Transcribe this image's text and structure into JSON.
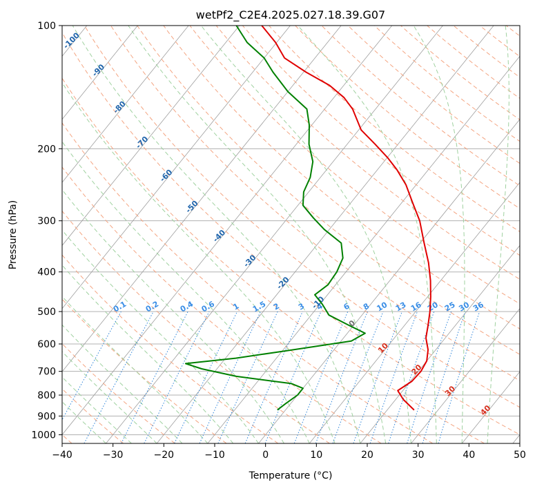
{
  "chart_data": {
    "type": "line",
    "diagram": "skew-T log-P",
    "title": "wetPf2_C2E4.2025.027.18.39.G07",
    "xlabel": "Temperature (°C)",
    "ylabel": "Pressure (hPa)",
    "xlim": [
      -40,
      50
    ],
    "ylim": [
      1050,
      100
    ],
    "yscale": "log",
    "x_ticks": [
      -40,
      -30,
      -20,
      -10,
      0,
      10,
      20,
      30,
      40,
      50
    ],
    "y_ticks": [
      100,
      200,
      300,
      400,
      500,
      600,
      700,
      800,
      900,
      1000
    ],
    "grid": true,
    "series": [
      {
        "role": "temperature",
        "color": "#e00000",
        "points": [
          {
            "p": 870,
            "t": 25.3
          },
          {
            "p": 820,
            "t": 21.5
          },
          {
            "p": 780,
            "t": 19.0
          },
          {
            "p": 740,
            "t": 20.3
          },
          {
            "p": 700,
            "t": 20.5
          },
          {
            "p": 660,
            "t": 20.0
          },
          {
            "p": 620,
            "t": 18.5
          },
          {
            "p": 580,
            "t": 16.2
          },
          {
            "p": 540,
            "t": 14.6
          },
          {
            "p": 500,
            "t": 12.8
          },
          {
            "p": 460,
            "t": 10.6
          },
          {
            "p": 420,
            "t": 8.0
          },
          {
            "p": 380,
            "t": 4.8
          },
          {
            "p": 340,
            "t": 0.8
          },
          {
            "p": 300,
            "t": -3.6
          },
          {
            "p": 270,
            "t": -8.0
          },
          {
            "p": 245,
            "t": -12.0
          },
          {
            "p": 225,
            "t": -16.2
          },
          {
            "p": 210,
            "t": -20.0
          },
          {
            "p": 195,
            "t": -24.5
          },
          {
            "p": 180,
            "t": -29.5
          },
          {
            "p": 160,
            "t": -34.5
          },
          {
            "p": 150,
            "t": -38.0
          },
          {
            "p": 140,
            "t": -42.8
          },
          {
            "p": 130,
            "t": -49.5
          },
          {
            "p": 120,
            "t": -56.0
          },
          {
            "p": 110,
            "t": -60.2
          },
          {
            "p": 100,
            "t": -65.6
          }
        ]
      },
      {
        "role": "dewpoint",
        "color": "#008000",
        "points": [
          {
            "p": 870,
            "t": -1.6
          },
          {
            "p": 840,
            "t": -1.0
          },
          {
            "p": 800,
            "t": 0.0
          },
          {
            "p": 770,
            "t": 0.0
          },
          {
            "p": 750,
            "t": -3.0
          },
          {
            "p": 720,
            "t": -15.0
          },
          {
            "p": 690,
            "t": -23.0
          },
          {
            "p": 670,
            "t": -27.0
          },
          {
            "p": 650,
            "t": -18.0
          },
          {
            "p": 620,
            "t": -8.0
          },
          {
            "p": 590,
            "t": 2.0
          },
          {
            "p": 565,
            "t": 3.5
          },
          {
            "p": 540,
            "t": -1.0
          },
          {
            "p": 510,
            "t": -6.5
          },
          {
            "p": 480,
            "t": -9.5
          },
          {
            "p": 455,
            "t": -12.5
          },
          {
            "p": 430,
            "t": -11.5
          },
          {
            "p": 400,
            "t": -11.8
          },
          {
            "p": 370,
            "t": -12.8
          },
          {
            "p": 340,
            "t": -15.5
          },
          {
            "p": 315,
            "t": -21.0
          },
          {
            "p": 295,
            "t": -25.0
          },
          {
            "p": 275,
            "t": -29.0
          },
          {
            "p": 255,
            "t": -31.0
          },
          {
            "p": 235,
            "t": -32.0
          },
          {
            "p": 215,
            "t": -34.0
          },
          {
            "p": 195,
            "t": -37.5
          },
          {
            "p": 175,
            "t": -40.5
          },
          {
            "p": 160,
            "t": -43.5
          },
          {
            "p": 145,
            "t": -50.0
          },
          {
            "p": 130,
            "t": -56.0
          },
          {
            "p": 120,
            "t": -60.0
          },
          {
            "p": 110,
            "t": -65.8
          },
          {
            "p": 100,
            "t": -70.6
          }
        ]
      }
    ],
    "dry_adiabat_labels": [
      {
        "text": "-100",
        "t": -100,
        "p": 110
      },
      {
        "text": "-90",
        "t": -90,
        "p": 130
      },
      {
        "text": "-80",
        "t": -80,
        "p": 160
      },
      {
        "text": "-70",
        "t": -70,
        "p": 195
      },
      {
        "text": "-60",
        "t": -60,
        "p": 235
      },
      {
        "text": "-50",
        "t": -50,
        "p": 280
      },
      {
        "text": "-40",
        "t": -40,
        "p": 330
      },
      {
        "text": "-30",
        "t": -30,
        "p": 380
      },
      {
        "text": "-20",
        "t": -20,
        "p": 430
      },
      {
        "text": "-10",
        "t": -10,
        "p": 480
      }
    ],
    "moist_adiabat_labels": [
      {
        "text": "0",
        "t": 0,
        "p": 540
      },
      {
        "text": "10",
        "t": 10,
        "p": 620
      },
      {
        "text": "20",
        "t": 20,
        "p": 700
      },
      {
        "text": "30",
        "t": 30,
        "p": 790
      },
      {
        "text": "40",
        "t": 40,
        "p": 880
      }
    ],
    "mixing_ratio_labels": [
      "0.1",
      "0.2",
      "0.4",
      "0.6",
      "1",
      "1.5",
      "2",
      "3",
      "4",
      "6",
      "8",
      "10",
      "13",
      "16",
      "20",
      "25",
      "30",
      "36"
    ]
  },
  "colors": {
    "temperature": "#e00000",
    "dewpoint": "#008000",
    "dry_adiabat": "#f4a582",
    "moist_adiabat": "#9fd19f",
    "mixing_ratio": "#2b83d9",
    "isotherm": "#9e9e9e",
    "label_dry": "#2166ac",
    "label_moist": "#d7301f",
    "label_mix": "#3a8ee6"
  }
}
